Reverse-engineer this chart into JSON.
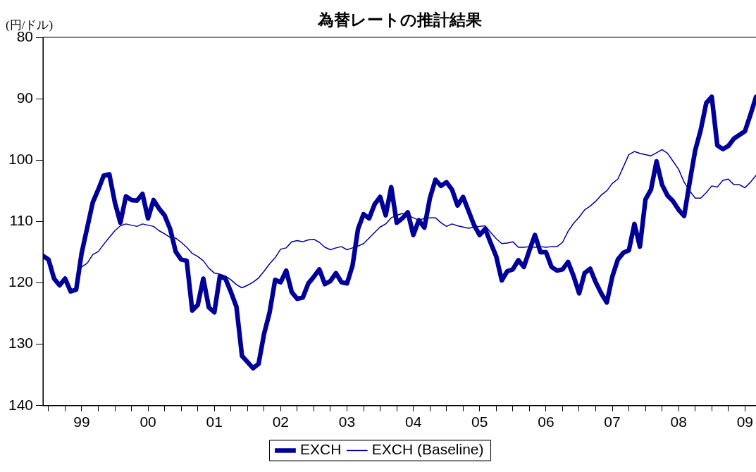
{
  "chart_data": {
    "type": "line",
    "title": "為替レートの推計結果",
    "ylabel": "(円/ドル)",
    "x": [
      "1998-12",
      "1999-01",
      "1999-02",
      "1999-03",
      "1999-04",
      "1999-05",
      "1999-06",
      "1999-07",
      "1999-08",
      "1999-09",
      "1999-10",
      "1999-11",
      "1999-12",
      "2000-01",
      "2000-02",
      "2000-03",
      "2000-04",
      "2000-05",
      "2000-06",
      "2000-07",
      "2000-08",
      "2000-09",
      "2000-10",
      "2000-11",
      "2000-12",
      "2001-01",
      "2001-02",
      "2001-03",
      "2001-04",
      "2001-05",
      "2001-06",
      "2001-07",
      "2001-08",
      "2001-09",
      "2001-10",
      "2001-11",
      "2001-12",
      "2002-01",
      "2002-02",
      "2002-03",
      "2002-04",
      "2002-05",
      "2002-06",
      "2002-07",
      "2002-08",
      "2002-09",
      "2002-10",
      "2002-11",
      "2002-12",
      "2003-01",
      "2003-02",
      "2003-03",
      "2003-04",
      "2003-05",
      "2003-06",
      "2003-07",
      "2003-08",
      "2003-09",
      "2003-10",
      "2003-11",
      "2003-12",
      "2004-01",
      "2004-02",
      "2004-03",
      "2004-04",
      "2004-05",
      "2004-06",
      "2004-07",
      "2004-08",
      "2004-09",
      "2004-10",
      "2004-11",
      "2004-12",
      "2005-01",
      "2005-02",
      "2005-03",
      "2005-04",
      "2005-05",
      "2005-06",
      "2005-07",
      "2005-08",
      "2005-09",
      "2005-10",
      "2005-11",
      "2005-12",
      "2006-01",
      "2006-02",
      "2006-03",
      "2006-04",
      "2006-05",
      "2006-06",
      "2006-07",
      "2006-08",
      "2006-09",
      "2006-10",
      "2006-11",
      "2006-12",
      "2007-01",
      "2007-02",
      "2007-03",
      "2007-04",
      "2007-05",
      "2007-06",
      "2007-07",
      "2007-08",
      "2007-09",
      "2007-10",
      "2007-11",
      "2007-12",
      "2008-01",
      "2008-02",
      "2008-03",
      "2008-04",
      "2008-05",
      "2008-06",
      "2008-07",
      "2008-08",
      "2008-09",
      "2008-10",
      "2008-11",
      "2008-12",
      "2009-01",
      "2009-02",
      "2009-03",
      "2009-04",
      "2009-05",
      "2009-06",
      "2009-07",
      "2009-08",
      "2009-09"
    ],
    "series": [
      {
        "name": "EXCH",
        "color": "#000099",
        "values": [
          115.6,
          116.2,
          119.3,
          120.4,
          119.3,
          121.4,
          121.1,
          115.1,
          111.0,
          106.9,
          104.8,
          102.5,
          102.3,
          106.9,
          110.2,
          105.9,
          106.5,
          106.6,
          105.5,
          109.5,
          106.5,
          107.9,
          109.0,
          111.2,
          114.9,
          116.2,
          116.4,
          124.5,
          123.6,
          119.3,
          124.0,
          124.8,
          118.9,
          119.3,
          121.5,
          123.9,
          131.9,
          132.9,
          133.9,
          133.2,
          128.3,
          124.8,
          119.5,
          119.9,
          118.0,
          121.5,
          122.6,
          122.4,
          120.1,
          119.0,
          117.8,
          120.2,
          119.7,
          118.4,
          119.9,
          120.1,
          117.2,
          111.2,
          108.8,
          109.5,
          107.2,
          106.0,
          109.0,
          104.4,
          110.2,
          109.5,
          108.5,
          112.2,
          109.8,
          111.0,
          106.2,
          103.2,
          104.2,
          103.6,
          104.8,
          107.4,
          106.0,
          108.3,
          110.6,
          112.2,
          111.2,
          113.5,
          115.7,
          119.6,
          118.1,
          117.8,
          116.3,
          117.4,
          114.7,
          112.2,
          115.0,
          115.0,
          117.4,
          118.0,
          117.8,
          116.6,
          118.9,
          121.7,
          118.4,
          117.7,
          119.9,
          121.7,
          123.2,
          119.0,
          116.2,
          115.1,
          114.7,
          110.4,
          114.1,
          106.4,
          104.8,
          100.2,
          104.0,
          105.8,
          106.7,
          108.1,
          109.1,
          103.6,
          98.4,
          95.1,
          90.7,
          89.7,
          97.6,
          98.2,
          97.7,
          96.5,
          95.9,
          95.3,
          92.6,
          89.7
        ]
      },
      {
        "name": "EXCH (Baseline)",
        "color": "#000099",
        "values": [
          null,
          null,
          null,
          null,
          null,
          null,
          null,
          117.4,
          116.8,
          115.4,
          114.9,
          113.7,
          112.6,
          111.5,
          110.7,
          110.4,
          110.6,
          110.8,
          110.4,
          110.6,
          110.8,
          111.5,
          112.0,
          112.6,
          112.7,
          113.4,
          114.2,
          115.2,
          115.7,
          116.4,
          117.6,
          118.4,
          118.6,
          118.9,
          119.5,
          120.3,
          120.8,
          120.4,
          119.9,
          119.2,
          118.1,
          116.9,
          115.9,
          114.5,
          114.3,
          113.3,
          113.1,
          113.3,
          113.0,
          112.9,
          113.4,
          114.2,
          114.6,
          114.3,
          114.1,
          114.6,
          114.3,
          114.0,
          113.6,
          112.7,
          111.8,
          110.9,
          110.4,
          109.4,
          109.0,
          108.7,
          109.0,
          109.4,
          109.8,
          109.5,
          109.4,
          109.4,
          110.2,
          110.8,
          110.4,
          110.7,
          110.9,
          111.1,
          110.9,
          110.8,
          110.7,
          111.8,
          112.8,
          113.6,
          113.5,
          113.3,
          114.2,
          114.2,
          114.1,
          114.2,
          114.1,
          114.2,
          114.1,
          114.1,
          113.4,
          111.6,
          110.3,
          109.3,
          108.1,
          107.5,
          106.7,
          105.7,
          105.0,
          103.8,
          103.1,
          101.1,
          99.1,
          98.6,
          98.9,
          99.1,
          99.3,
          98.8,
          98.3,
          98.9,
          100.2,
          101.5,
          103.6,
          105.0,
          106.2,
          106.2,
          105.3,
          104.2,
          104.4,
          103.3,
          103.1,
          104.0,
          104.0,
          104.5,
          103.6,
          102.5
        ]
      }
    ],
    "xlim": [
      "1998-12",
      "2009-09"
    ],
    "xticks": [
      {
        "value": "1999-01",
        "label": null
      },
      {
        "value": "1999-04",
        "label": null
      },
      {
        "value": "1999-07",
        "label": "99"
      },
      {
        "value": "1999-10",
        "label": null
      },
      {
        "value": "2000-01",
        "label": null
      },
      {
        "value": "2000-04",
        "label": null
      },
      {
        "value": "2000-07",
        "label": "00"
      },
      {
        "value": "2000-10",
        "label": null
      },
      {
        "value": "2001-01",
        "label": null
      },
      {
        "value": "2001-04",
        "label": null
      },
      {
        "value": "2001-07",
        "label": "01"
      },
      {
        "value": "2001-10",
        "label": null
      },
      {
        "value": "2002-01",
        "label": null
      },
      {
        "value": "2002-04",
        "label": null
      },
      {
        "value": "2002-07",
        "label": "02"
      },
      {
        "value": "2002-10",
        "label": null
      },
      {
        "value": "2003-01",
        "label": null
      },
      {
        "value": "2003-04",
        "label": null
      },
      {
        "value": "2003-07",
        "label": "03"
      },
      {
        "value": "2003-10",
        "label": null
      },
      {
        "value": "2004-01",
        "label": null
      },
      {
        "value": "2004-04",
        "label": null
      },
      {
        "value": "2004-07",
        "label": "04"
      },
      {
        "value": "2004-10",
        "label": null
      },
      {
        "value": "2005-01",
        "label": null
      },
      {
        "value": "2005-04",
        "label": null
      },
      {
        "value": "2005-07",
        "label": "05"
      },
      {
        "value": "2005-10",
        "label": null
      },
      {
        "value": "2006-01",
        "label": null
      },
      {
        "value": "2006-04",
        "label": null
      },
      {
        "value": "2006-07",
        "label": "06"
      },
      {
        "value": "2006-10",
        "label": null
      },
      {
        "value": "2007-01",
        "label": null
      },
      {
        "value": "2007-04",
        "label": null
      },
      {
        "value": "2007-07",
        "label": "07"
      },
      {
        "value": "2007-10",
        "label": null
      },
      {
        "value": "2008-01",
        "label": null
      },
      {
        "value": "2008-04",
        "label": null
      },
      {
        "value": "2008-07",
        "label": "08"
      },
      {
        "value": "2008-10",
        "label": null
      },
      {
        "value": "2009-01",
        "label": null
      },
      {
        "value": "2009-04",
        "label": null
      },
      {
        "value": "2009-07",
        "label": "09"
      }
    ],
    "ylim": [
      140,
      80
    ],
    "yticks": [
      80,
      90,
      100,
      110,
      120,
      130,
      140
    ],
    "grid": false,
    "legend": "bottom",
    "marker": "none",
    "line_style": "solid"
  }
}
